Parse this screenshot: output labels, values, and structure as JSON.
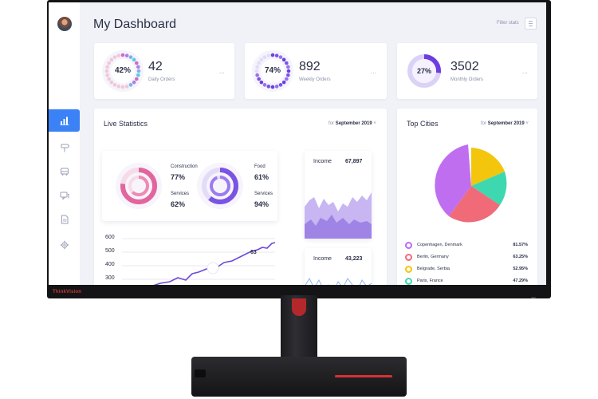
{
  "brand_logo": "ThinkVision",
  "header": {
    "title": "My Dashboard",
    "filter_label": "Filter stats"
  },
  "sidebar": {
    "items": [
      {
        "icon": "bar-chart-icon",
        "active": true
      },
      {
        "icon": "signpost-icon",
        "active": false
      },
      {
        "icon": "bus-icon",
        "active": false
      },
      {
        "icon": "chat-icon",
        "active": false
      },
      {
        "icon": "document-icon",
        "active": false
      },
      {
        "icon": "gear-icon",
        "active": false
      }
    ]
  },
  "stats": [
    {
      "percent_label": "42%",
      "percent": 0.42,
      "value": "42",
      "label": "Daily Orders"
    },
    {
      "percent_label": "74%",
      "percent": 0.74,
      "value": "892",
      "label": "Weekly Orders"
    },
    {
      "percent_label": "27%",
      "percent": 0.27,
      "value": "3502",
      "label": "Monthly Orders"
    }
  ],
  "stats_more": "...",
  "live": {
    "title": "Live Statistics",
    "filter_prefix": "for",
    "filter_value": "September 2019",
    "rings": [
      {
        "label": "Construction",
        "value": "77%",
        "percent": 0.77
      },
      {
        "label": "Services",
        "value": "62%",
        "percent": 0.62
      },
      {
        "label": "Food",
        "value": "61%",
        "percent": 0.61
      },
      {
        "label": "Services",
        "value": "94%",
        "percent": 0.94
      }
    ],
    "line_chart": {
      "y_ticks": [
        "600",
        "500",
        "400",
        "300"
      ],
      "annotation": "63"
    },
    "income_cards": [
      {
        "label": "Income",
        "value": "67,897"
      },
      {
        "label": "Income",
        "value": "43,223"
      }
    ]
  },
  "cities": {
    "title": "Top Cities",
    "filter_prefix": "for",
    "filter_value": "September 2019",
    "rows": [
      {
        "name": "Copenhagen, Denmark",
        "value": "81.57%",
        "color": "#b86bf0"
      },
      {
        "name": "Berlin, Germany",
        "value": "63.25%",
        "color": "#f06a78"
      },
      {
        "name": "Belgrade, Serbia",
        "value": "52.95%",
        "color": "#f3c60d"
      },
      {
        "name": "Paris, France",
        "value": "47.29%",
        "color": "#3ed8b0"
      }
    ]
  },
  "colors": {
    "accent": "#3b82f6",
    "purple": "#7b4fe0",
    "pink": "#e86a9a",
    "text": "#2a2f45",
    "muted": "#8a90a8"
  }
}
